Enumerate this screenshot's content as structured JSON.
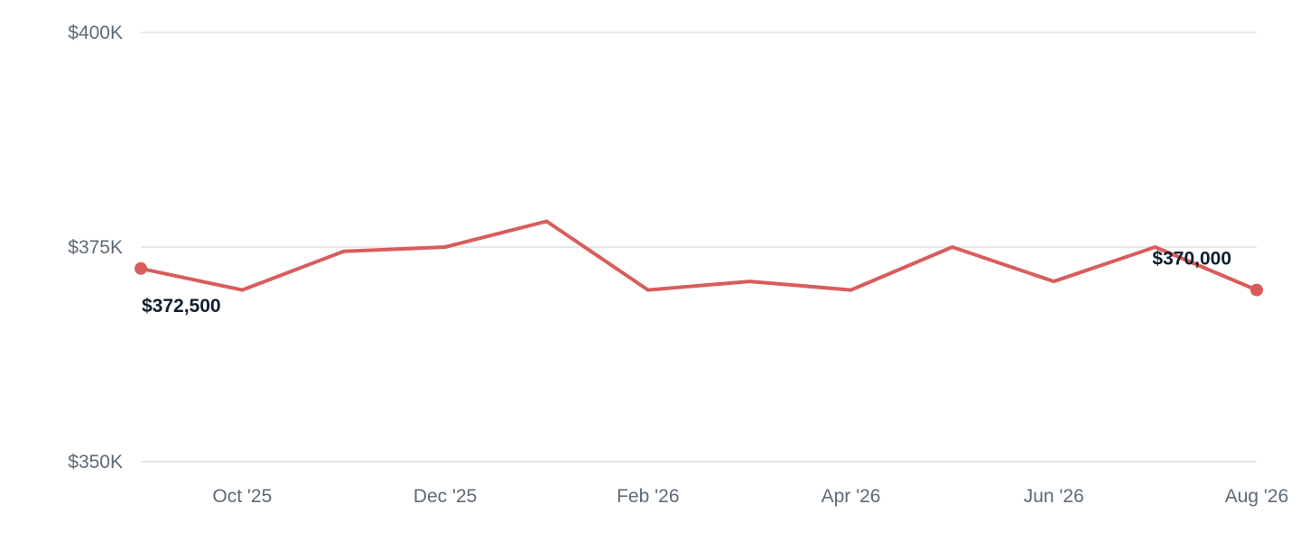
{
  "chart_data": {
    "type": "line",
    "title": "",
    "xlabel": "",
    "ylabel": "",
    "x": [
      "2025-09",
      "2025-10",
      "2025-11",
      "2025-12",
      "2026-01",
      "2026-02",
      "2026-03",
      "2026-04",
      "2026-05",
      "2026-06",
      "2026-07",
      "2026-08"
    ],
    "series": [
      {
        "values": [
          372500,
          370000,
          374500,
          375000,
          378000,
          370000,
          371000,
          370000,
          375000,
          371000,
          375000,
          370000
        ]
      }
    ],
    "ylim": [
      350000,
      400000
    ],
    "y_ticks": [
      {
        "value": 400000,
        "label": "$400K"
      },
      {
        "value": 375000,
        "label": "$375K"
      },
      {
        "value": 350000,
        "label": "$350K"
      }
    ],
    "x_ticks": [
      {
        "x": "2025-10",
        "label": "Oct '25"
      },
      {
        "x": "2025-12",
        "label": "Dec '25"
      },
      {
        "x": "2026-02",
        "label": "Feb '26"
      },
      {
        "x": "2026-04",
        "label": "Apr '26"
      },
      {
        "x": "2026-06",
        "label": "Jun '26"
      },
      {
        "x": "2026-08",
        "label": "Aug '26"
      }
    ],
    "annotations": [
      {
        "x": "2025-09",
        "text": "$372,500"
      },
      {
        "x": "2026-08",
        "text": "$370,000"
      }
    ],
    "line_color": "#d95c5c",
    "grid": true,
    "legend": "none"
  }
}
